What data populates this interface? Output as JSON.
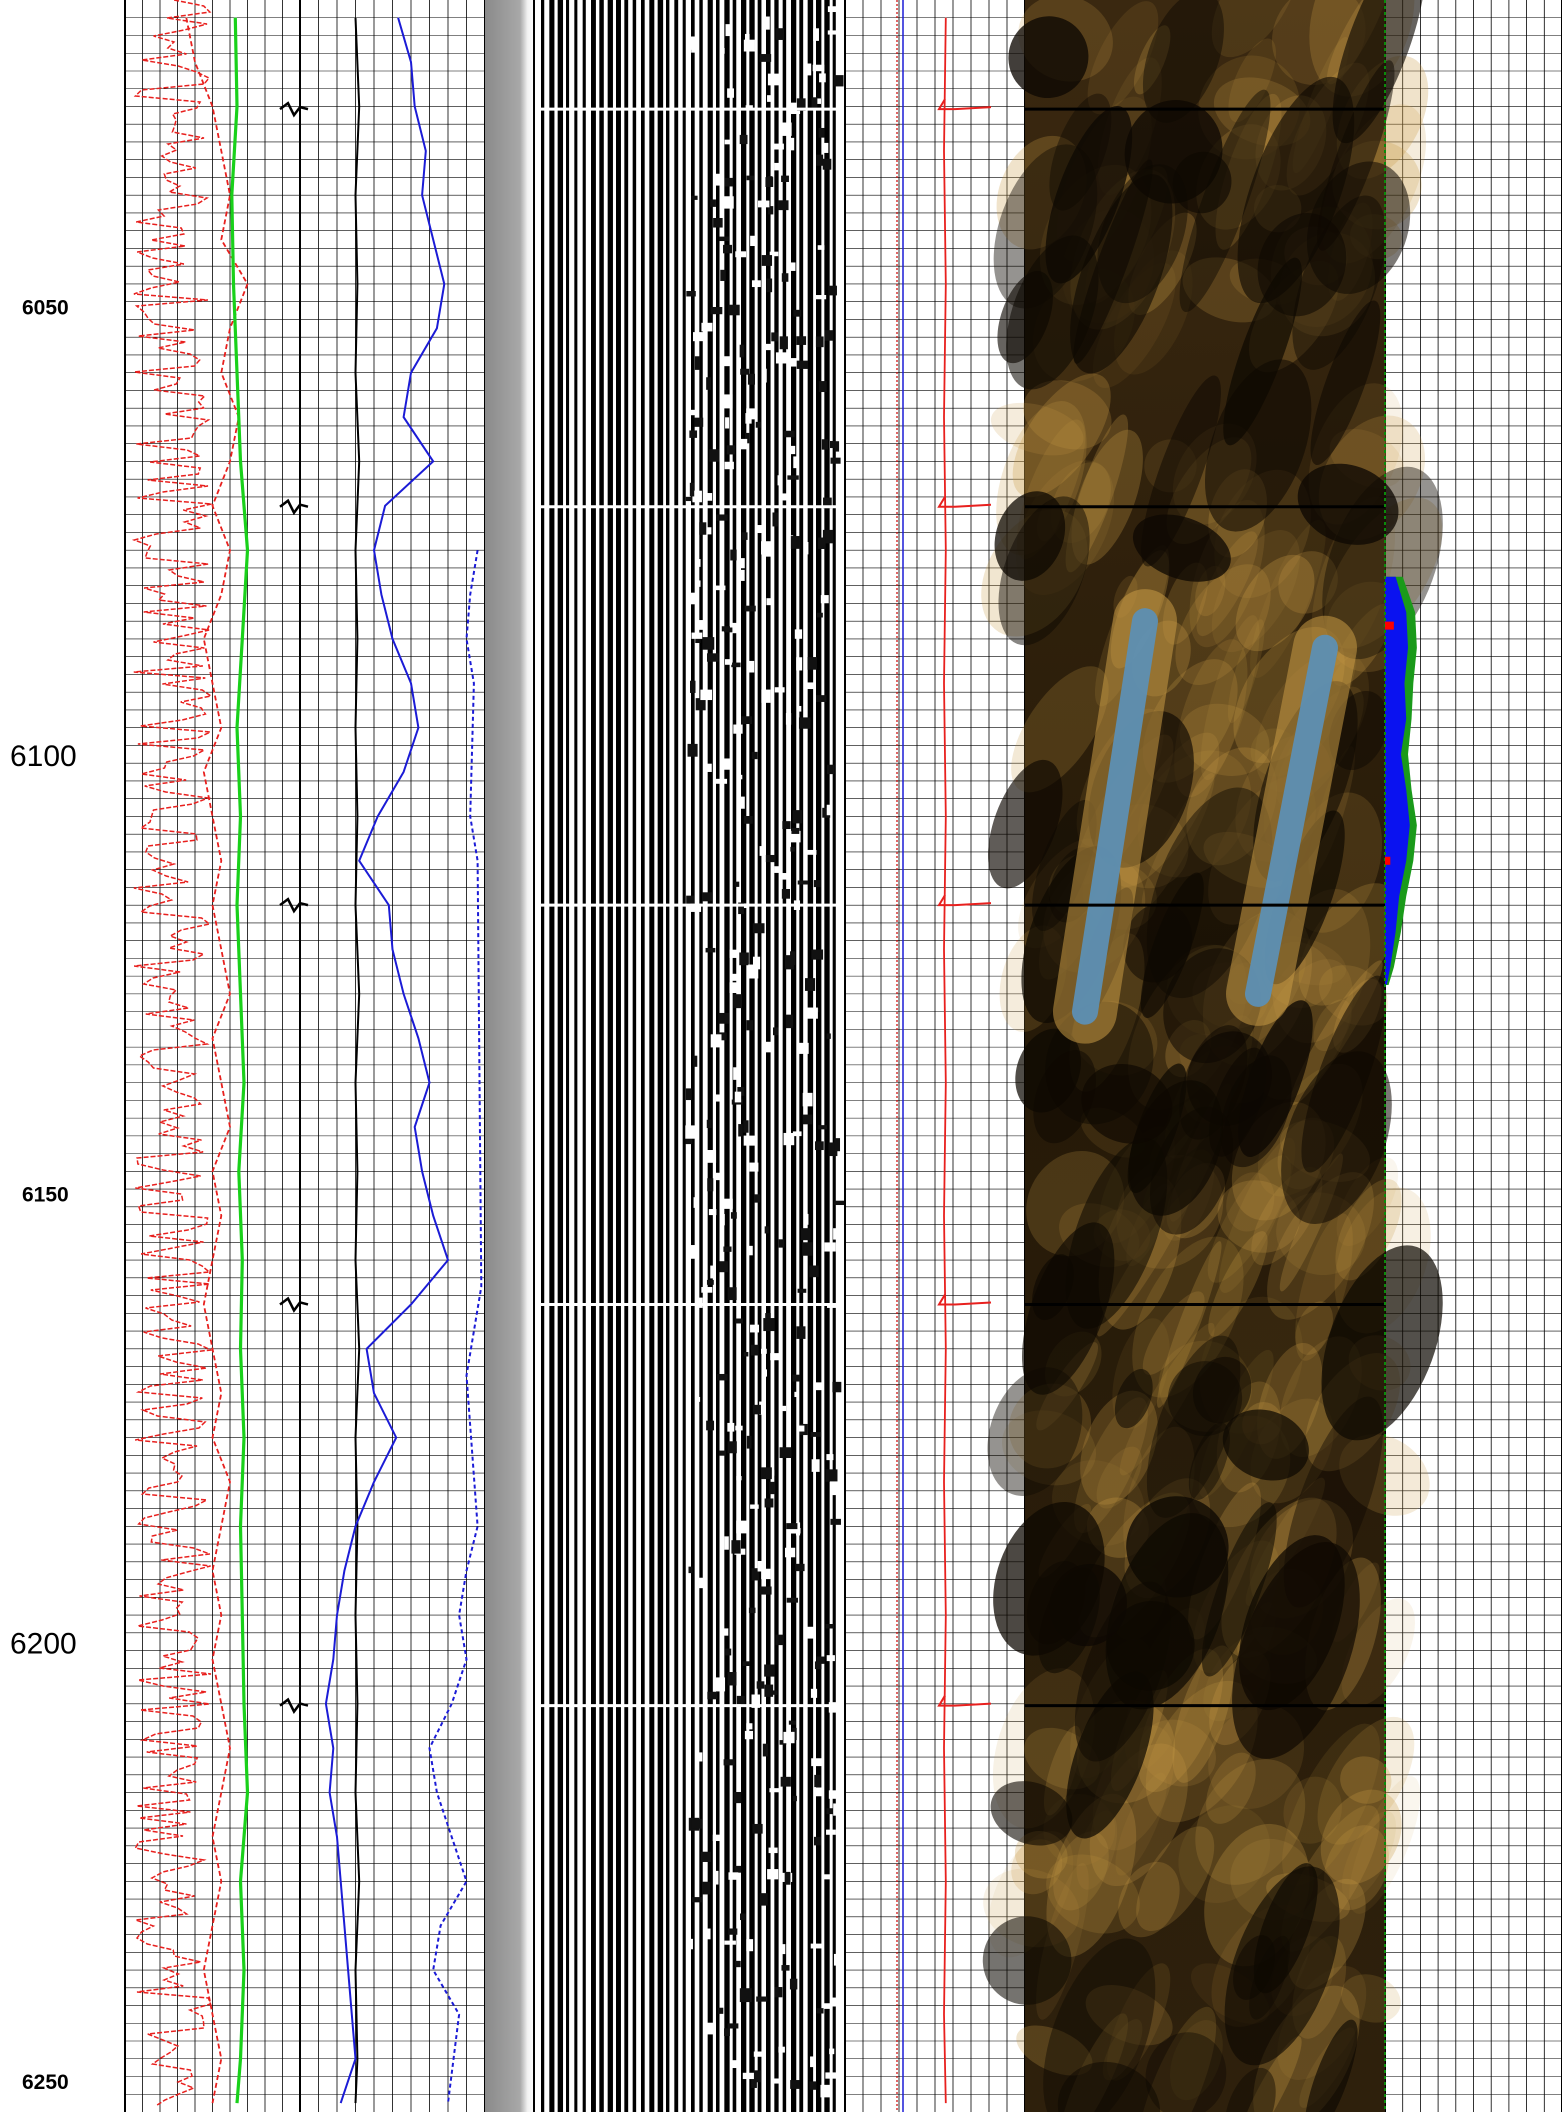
{
  "chart_data": {
    "type": "line",
    "title": "",
    "xlabel": "",
    "ylabel": "",
    "depth_range": [
      6013,
      6251
    ],
    "depth_labels": [
      {
        "depth": 6050,
        "text": "6050",
        "size": "small"
      },
      {
        "depth": 6100,
        "text": "6100",
        "size": "large"
      },
      {
        "depth": 6150,
        "text": "6150",
        "size": "small"
      },
      {
        "depth": 6200,
        "text": "6200",
        "size": "large"
      },
      {
        "depth": 6250,
        "text": "6250",
        "size": "small"
      }
    ],
    "collar_depths": [
      6025.3,
      6070.1,
      6115.0,
      6160.0,
      6205.2
    ],
    "colors": {
      "grid": "#000000",
      "red_curve": "#e8201e",
      "green_curve": "#19d11a",
      "blue_curve": "#1b1bd6",
      "black_curve": "#000000",
      "image_dark": "#1c1306",
      "image_bright": "#c99a45",
      "image_highlight": "#5d8fb3",
      "waveform": "#000000",
      "histogram_blue": "#0a12f0",
      "histogram_green": "#1a9a1a",
      "histogram_red": "#ff0000"
    },
    "series": [
      {
        "track": 1,
        "style": "dashed-red",
        "depth": [
          6015,
          6020,
          6025,
          6030,
          6035,
          6040,
          6045,
          6050,
          6055,
          6060,
          6065,
          6070,
          6075,
          6080,
          6085,
          6090,
          6095,
          6100,
          6105,
          6110,
          6115,
          6120,
          6125,
          6130,
          6135,
          6140,
          6145,
          6150,
          6155,
          6160,
          6165,
          6170,
          6175,
          6180,
          6185,
          6190,
          6195,
          6200,
          6205,
          6210,
          6215,
          6220,
          6225,
          6230,
          6235,
          6240,
          6245,
          6250
        ],
        "values": [
          0.35,
          0.4,
          0.5,
          0.55,
          0.6,
          0.55,
          0.7,
          0.6,
          0.55,
          0.65,
          0.6,
          0.5,
          0.6,
          0.55,
          0.45,
          0.5,
          0.55,
          0.45,
          0.5,
          0.55,
          0.5,
          0.55,
          0.6,
          0.5,
          0.55,
          0.6,
          0.5,
          0.55,
          0.5,
          0.45,
          0.5,
          0.55,
          0.5,
          0.6,
          0.55,
          0.5,
          0.55,
          0.5,
          0.55,
          0.6,
          0.55,
          0.5,
          0.55,
          0.5,
          0.45,
          0.5,
          0.55,
          0.5
        ]
      },
      {
        "track": 1,
        "style": "green",
        "depth": [
          6015,
          6025,
          6035,
          6045,
          6055,
          6065,
          6075,
          6085,
          6095,
          6105,
          6115,
          6125,
          6135,
          6145,
          6155,
          6165,
          6175,
          6185,
          6195,
          6205,
          6215,
          6225,
          6235,
          6245,
          6250
        ],
        "values": [
          0.63,
          0.64,
          0.61,
          0.62,
          0.64,
          0.66,
          0.7,
          0.67,
          0.64,
          0.66,
          0.64,
          0.66,
          0.68,
          0.65,
          0.67,
          0.66,
          0.68,
          0.66,
          0.67,
          0.68,
          0.7,
          0.66,
          0.68,
          0.66,
          0.64
        ]
      },
      {
        "track": 2,
        "style": "black",
        "depth": [
          6015,
          6025,
          6035,
          6045,
          6055,
          6065,
          6075,
          6085,
          6095,
          6105,
          6115,
          6125,
          6135,
          6145,
          6155,
          6165,
          6175,
          6185,
          6195,
          6205,
          6215,
          6225,
          6235,
          6245,
          6250
        ],
        "values": [
          0.3,
          0.32,
          0.3,
          0.31,
          0.3,
          0.32,
          0.3,
          0.31,
          0.3,
          0.31,
          0.3,
          0.32,
          0.3,
          0.31,
          0.3,
          0.32,
          0.3,
          0.31,
          0.3,
          0.31,
          0.3,
          0.32,
          0.3,
          0.31,
          0.3
        ]
      },
      {
        "track": 2,
        "style": "blue",
        "depth": [
          6015,
          6020,
          6025,
          6030,
          6035,
          6040,
          6045,
          6050,
          6055,
          6060,
          6065,
          6070,
          6075,
          6080,
          6085,
          6090,
          6095,
          6100,
          6105,
          6110,
          6115,
          6120,
          6125,
          6130,
          6135,
          6140,
          6145,
          6150,
          6155,
          6160,
          6165,
          6170,
          6175,
          6180,
          6185,
          6190,
          6195,
          6200,
          6205,
          6210,
          6215,
          6220,
          6225,
          6230,
          6235,
          6240,
          6245,
          6250
        ],
        "values": [
          0.53,
          0.6,
          0.62,
          0.68,
          0.66,
          0.72,
          0.78,
          0.74,
          0.6,
          0.56,
          0.72,
          0.46,
          0.4,
          0.44,
          0.5,
          0.6,
          0.64,
          0.56,
          0.42,
          0.32,
          0.48,
          0.5,
          0.56,
          0.64,
          0.7,
          0.62,
          0.66,
          0.72,
          0.8,
          0.6,
          0.36,
          0.4,
          0.52,
          0.4,
          0.3,
          0.24,
          0.2,
          0.18,
          0.14,
          0.18,
          0.16,
          0.2,
          0.22,
          0.24,
          0.26,
          0.28,
          0.3,
          0.22
        ]
      },
      {
        "track": 2,
        "style": "dashed-blue",
        "depth": [
          6075,
          6080,
          6085,
          6090,
          6105,
          6110,
          6158,
          6163,
          6168,
          6185,
          6190,
          6195,
          6200,
          6205,
          6210,
          6215,
          6220,
          6225,
          6230,
          6235,
          6240,
          6250
        ],
        "values": [
          0.96,
          0.92,
          0.9,
          0.94,
          0.92,
          0.96,
          0.98,
          0.94,
          0.9,
          0.96,
          0.9,
          0.86,
          0.9,
          0.82,
          0.7,
          0.74,
          0.82,
          0.9,
          0.76,
          0.72,
          0.86,
          0.8
        ]
      },
      {
        "track": 5,
        "style": "red",
        "depth": [
          6015,
          6030,
          6045,
          6060,
          6075,
          6090,
          6105,
          6120,
          6135,
          6150,
          6165,
          6180,
          6195,
          6210,
          6225,
          6240,
          6250
        ],
        "values": [
          0.56,
          0.55,
          0.56,
          0.55,
          0.56,
          0.55,
          0.56,
          0.55,
          0.56,
          0.55,
          0.56,
          0.55,
          0.56,
          0.55,
          0.56,
          0.55,
          0.56
        ]
      }
    ],
    "histogram": {
      "depth": [
        6078,
        6082,
        6086,
        6090,
        6094,
        6098,
        6102,
        6106,
        6110,
        6114,
        6118,
        6122,
        6124
      ],
      "blue": [
        0.06,
        0.12,
        0.13,
        0.11,
        0.12,
        0.09,
        0.12,
        0.14,
        0.12,
        0.08,
        0.06,
        0.03,
        0.01
      ],
      "green": [
        0.1,
        0.17,
        0.18,
        0.16,
        0.15,
        0.13,
        0.15,
        0.18,
        0.16,
        0.12,
        0.09,
        0.05,
        0.02
      ]
    }
  }
}
